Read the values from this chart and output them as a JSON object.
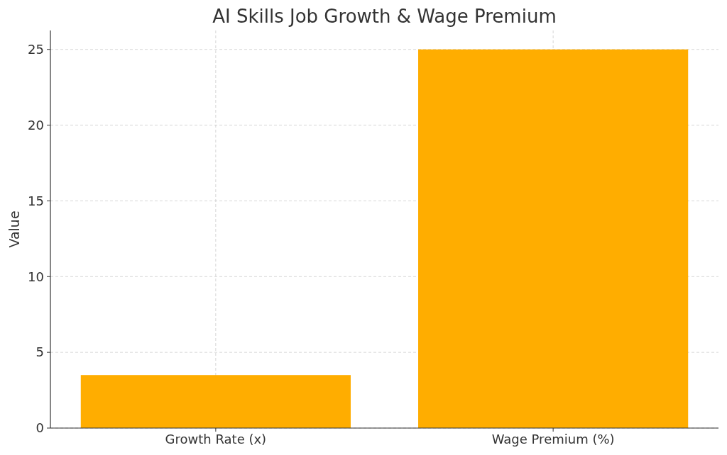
{
  "chart_data": {
    "type": "bar",
    "title": "AI Skills Job Growth & Wage Premium",
    "ylabel": "Value",
    "categories": [
      "Growth Rate (x)",
      "Wage Premium (%)"
    ],
    "values": [
      3.5,
      25
    ],
    "color": "#ffad00",
    "ylim": [
      0,
      26.25
    ],
    "yticks": [
      0,
      5,
      10,
      15,
      20,
      25
    ],
    "grid": true
  }
}
